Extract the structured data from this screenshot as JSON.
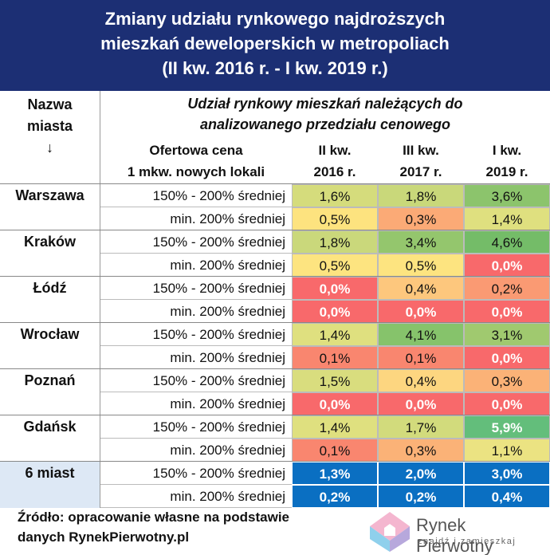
{
  "title": {
    "line1": "Zmiany udziału rynkowego najdroższych",
    "line2": "mieszkań deweloperskich w metropoliach",
    "line3": "(II kw. 2016 r. - I kw. 2019 r.)"
  },
  "header": {
    "nazwa_line1": "Nazwa",
    "nazwa_line2": "miasta",
    "arrow": "↓",
    "udzial_line1": "Udział rynkowy mieszkań należących do",
    "udzial_line2": "analizowanego przedziału cenowego",
    "price_line1": "Ofertowa cena",
    "price_line2": "1 mkw. nowych lokali",
    "col1_line1": "II kw.",
    "col1_line2": "2016 r.",
    "col2_line1": "III kw.",
    "col2_line2": "2017 r.",
    "col3_line1": "I kw.",
    "col3_line2": "2019 r."
  },
  "chart_data": {
    "type": "table",
    "title": "Zmiany udziału rynkowego najdroższych mieszkań deweloperskich w metropoliach (II kw. 2016 r. - I kw. 2019 r.)",
    "columns": [
      "II kw. 2016 r.",
      "III kw. 2017 r.",
      "I kw. 2019 r."
    ],
    "rows": [
      {
        "city": "Warszawa",
        "bands": [
          {
            "price": "150% - 200% średniej",
            "values": [
              "1,6%",
              "1,8%",
              "3,6%"
            ],
            "colors": [
              "#d5dc7c",
              "#c9d87a",
              "#8cc46c"
            ]
          },
          {
            "price": "min. 200% średniej",
            "values": [
              "0,5%",
              "0,3%",
              "1,4%"
            ],
            "colors": [
              "#fde37f",
              "#fbaa76",
              "#dfe07f"
            ]
          }
        ]
      },
      {
        "city": "Kraków",
        "bands": [
          {
            "price": "150% - 200% średniej",
            "values": [
              "1,8%",
              "3,4%",
              "4,6%"
            ],
            "colors": [
              "#cad87b",
              "#94c66d",
              "#74bc68"
            ]
          },
          {
            "price": "min. 200% średniej",
            "values": [
              "0,5%",
              "0,5%",
              "0,0%"
            ],
            "colors": [
              "#fde480",
              "#fde480",
              "#f8696b"
            ]
          }
        ]
      },
      {
        "city": "Łódź",
        "bands": [
          {
            "price": "150% - 200% średniej",
            "values": [
              "0,0%",
              "0,4%",
              "0,2%"
            ],
            "colors": [
              "#f8696b",
              "#fdc77d",
              "#fa9a73"
            ]
          },
          {
            "price": "min. 200% średniej",
            "values": [
              "0,0%",
              "0,0%",
              "0,0%"
            ],
            "colors": [
              "#f8696b",
              "#f8696b",
              "#f8696b"
            ]
          }
        ]
      },
      {
        "city": "Wrocław",
        "bands": [
          {
            "price": "150% - 200% średniej",
            "values": [
              "1,4%",
              "4,1%",
              "3,1%"
            ],
            "colors": [
              "#dfe07f",
              "#86c36b",
              "#a0c96f"
            ]
          },
          {
            "price": "min. 200% średniej",
            "values": [
              "0,1%",
              "0,1%",
              "0,0%"
            ],
            "colors": [
              "#f9866f",
              "#f9866f",
              "#f8696b"
            ]
          }
        ]
      },
      {
        "city": "Poznań",
        "bands": [
          {
            "price": "150% - 200% średniej",
            "values": [
              "1,5%",
              "0,4%",
              "0,3%"
            ],
            "colors": [
              "#d9dd7e",
              "#fdd680",
              "#fbb277"
            ]
          },
          {
            "price": "min. 200% średniej",
            "values": [
              "0,0%",
              "0,0%",
              "0,0%"
            ],
            "colors": [
              "#f8696b",
              "#f8696b",
              "#f8696b"
            ]
          }
        ]
      },
      {
        "city": "Gdańsk",
        "bands": [
          {
            "price": "150% - 200% średniej",
            "values": [
              "1,4%",
              "1,7%",
              "5,9%"
            ],
            "colors": [
              "#dfe07f",
              "#d2db7c",
              "#63be7b"
            ]
          },
          {
            "price": "min. 200% średniej",
            "values": [
              "0,1%",
              "0,3%",
              "1,1%"
            ],
            "colors": [
              "#f9866f",
              "#fbb277",
              "#ebe382"
            ]
          }
        ]
      },
      {
        "city": "6 miast",
        "bands": [
          {
            "price": "150% - 200% średniej",
            "values": [
              "1,3%",
              "2,0%",
              "3,0%"
            ],
            "colors": [
              "#0a6fc2",
              "#0a6fc2",
              "#0a6fc2"
            ]
          },
          {
            "price": "min. 200% średniej",
            "values": [
              "0,2%",
              "0,2%",
              "0,4%"
            ],
            "colors": [
              "#0a6fc2",
              "#0a6fc2",
              "#0a6fc2"
            ]
          }
        ]
      }
    ]
  },
  "footer": {
    "line1": "Źródło: opracowanie własne na podstawie",
    "line2": "danych RynekPierwotny.pl"
  },
  "logo": {
    "name": "Rynek Pierwotny",
    "tagline": "znajdź i zamieszkaj"
  }
}
